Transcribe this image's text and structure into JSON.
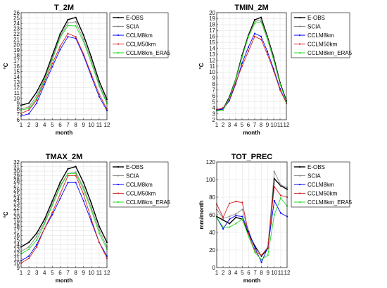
{
  "figure": {
    "legend_labels": [
      "E-OBS",
      "SCIA",
      "CCLM8km",
      "CCLM50km",
      "CCLM8km_ERA5"
    ]
  },
  "colors": {
    "E-OBS": "#000000",
    "SCIA": "#888888",
    "CCLM8km": "#0000ff",
    "CCLM50km": "#d62020",
    "CCLM8km_ERA5": "#22dd22",
    "axis": "#262626",
    "grid": "#e4e4e4"
  },
  "chart_data": [
    {
      "type": "line",
      "title": "T_2M",
      "xlabel": "month",
      "ylabel": "°C",
      "x": [
        1,
        2,
        3,
        4,
        5,
        6,
        7,
        8,
        9,
        10,
        11,
        12
      ],
      "xlim": [
        1,
        12
      ],
      "ylim": [
        6,
        26
      ],
      "ytick_step": 1,
      "grid": true,
      "legend": "top-right",
      "series": [
        {
          "name": "E-OBS",
          "values": [
            8.7,
            9.1,
            11.2,
            14.0,
            18.0,
            22.0,
            24.7,
            25.1,
            21.8,
            17.7,
            13.2,
            9.8
          ]
        },
        {
          "name": "SCIA",
          "values": [
            8.0,
            8.4,
            10.5,
            13.6,
            17.6,
            21.5,
            24.1,
            24.3,
            21.0,
            17.1,
            12.6,
            9.3
          ]
        },
        {
          "name": "CCLM8km",
          "values": [
            6.7,
            7.1,
            9.1,
            12.6,
            15.9,
            19.1,
            21.5,
            21.2,
            18.0,
            14.1,
            10.3,
            7.7
          ]
        },
        {
          "name": "CCLM50km",
          "values": [
            7.2,
            7.8,
            9.7,
            13.1,
            16.5,
            19.7,
            22.1,
            21.5,
            18.3,
            14.5,
            10.8,
            8.0
          ]
        },
        {
          "name": "CCLM8km_ERA5",
          "values": [
            7.8,
            8.1,
            10.0,
            13.5,
            17.2,
            21.3,
            23.6,
            23.5,
            20.6,
            16.6,
            12.3,
            9.0
          ]
        }
      ]
    },
    {
      "type": "line",
      "title": "TMIN_2M",
      "xlabel": "month",
      "ylabel": "°C",
      "x": [
        1,
        2,
        3,
        4,
        5,
        6,
        7,
        8,
        9,
        10,
        11,
        12
      ],
      "xlim": [
        1,
        12
      ],
      "ylim": [
        2,
        20
      ],
      "ytick_step": 1,
      "grid": true,
      "legend": "top-right",
      "series": [
        {
          "name": "E-OBS",
          "values": [
            3.6,
            3.8,
            5.8,
            8.8,
            12.8,
            16.2,
            18.8,
            19.2,
            16.0,
            12.5,
            8.2,
            5.2
          ]
        },
        {
          "name": "SCIA",
          "values": [
            3.5,
            3.6,
            5.6,
            8.5,
            12.5,
            16.0,
            18.5,
            18.8,
            15.8,
            12.2,
            8.0,
            5.0
          ]
        },
        {
          "name": "CCLM8km",
          "values": [
            3.6,
            3.8,
            5.2,
            8.0,
            11.5,
            14.2,
            16.5,
            16.0,
            13.5,
            10.5,
            7.2,
            4.8
          ]
        },
        {
          "name": "CCLM50km",
          "values": [
            3.7,
            4.0,
            5.4,
            8.2,
            11.0,
            13.5,
            16.0,
            15.5,
            13.0,
            10.2,
            7.0,
            4.8
          ]
        },
        {
          "name": "CCLM8km_ERA5",
          "values": [
            3.5,
            3.6,
            5.6,
            8.8,
            12.5,
            15.9,
            18.2,
            18.5,
            15.5,
            12.0,
            8.0,
            5.0
          ]
        }
      ]
    },
    {
      "type": "line",
      "title": "TMAX_2M",
      "xlabel": "month",
      "ylabel": "°C",
      "x": [
        1,
        2,
        3,
        4,
        5,
        6,
        7,
        8,
        9,
        10,
        11,
        12
      ],
      "xlim": [
        1,
        12
      ],
      "ylim": [
        9,
        32
      ],
      "ytick_step": 1,
      "grid": true,
      "legend": "top-right",
      "series": [
        {
          "name": "E-OBS",
          "values": [
            13.5,
            14.5,
            16.5,
            19.5,
            23.5,
            27.5,
            30.5,
            31.0,
            27.5,
            23.0,
            18.0,
            14.5
          ]
        },
        {
          "name": "SCIA",
          "values": [
            12.5,
            13.5,
            15.8,
            18.8,
            22.8,
            26.8,
            29.5,
            29.8,
            26.5,
            22.0,
            17.2,
            13.5
          ]
        },
        {
          "name": "CCLM8km",
          "values": [
            10.5,
            11.5,
            14.0,
            17.5,
            20.5,
            24.0,
            27.5,
            27.5,
            23.5,
            19.0,
            14.5,
            11.5
          ]
        },
        {
          "name": "CCLM50km",
          "values": [
            10.0,
            11.0,
            13.5,
            17.5,
            21.0,
            25.0,
            29.0,
            29.0,
            25.0,
            19.5,
            14.5,
            11.0
          ]
        },
        {
          "name": "CCLM8km_ERA5",
          "values": [
            12.0,
            13.0,
            15.0,
            18.5,
            22.5,
            26.5,
            29.5,
            29.5,
            26.0,
            21.5,
            16.5,
            13.0
          ]
        }
      ]
    },
    {
      "type": "line",
      "title": "TOT_PREC",
      "xlabel": "month",
      "ylabel": "mm/month",
      "x": [
        1,
        2,
        3,
        4,
        5,
        6,
        7,
        8,
        9,
        10,
        11,
        12
      ],
      "xlim": [
        1,
        12
      ],
      "ylim": [
        0,
        120
      ],
      "ytick_step": 20,
      "grid": true,
      "legend": "top-right",
      "series": [
        {
          "name": "E-OBS",
          "values": [
            58,
            54,
            50,
            57,
            55,
            38,
            24,
            13,
            22,
            101,
            93,
            89
          ]
        },
        {
          "name": "SCIA",
          "values": [
            66,
            56,
            58,
            61,
            66,
            41,
            22,
            14,
            23,
            109,
            94,
            91
          ]
        },
        {
          "name": "CCLM8km",
          "values": [
            57,
            44,
            55,
            59,
            58,
            41,
            22,
            6,
            23,
            76,
            62,
            58
          ]
        },
        {
          "name": "CCLM50km",
          "values": [
            72,
            57,
            73,
            75,
            74,
            38,
            18,
            14,
            23,
            92,
            82,
            80
          ]
        },
        {
          "name": "CCLM8km_ERA5",
          "values": [
            57,
            46,
            46,
            50,
            55,
            35,
            17,
            9,
            14,
            60,
            79,
            70
          ]
        }
      ]
    }
  ]
}
